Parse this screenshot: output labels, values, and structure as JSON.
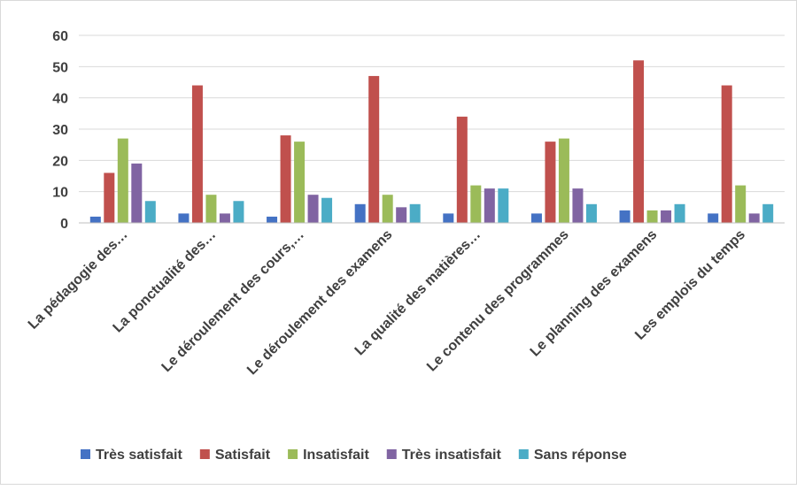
{
  "chart_data": {
    "type": "bar",
    "title": "",
    "xlabel": "",
    "ylabel": "",
    "ylim": [
      0,
      60
    ],
    "yticks": [
      0,
      10,
      20,
      30,
      40,
      50,
      60
    ],
    "grid": "horizontal",
    "legend_position": "bottom",
    "categories": [
      "La pédagogie des…",
      "La ponctualité des…",
      "Le déroulement des cours,…",
      "Le déroulement des examens",
      "La qualité des matières…",
      "Le contenu des programmes",
      "Le planning des examens",
      "Les emplois du temps"
    ],
    "series": [
      {
        "name": "Très satisfait",
        "color": "#4472C4",
        "values": [
          2,
          3,
          2,
          6,
          3,
          3,
          4,
          3
        ]
      },
      {
        "name": "Satisfait",
        "color": "#C0504D",
        "values": [
          16,
          44,
          28,
          47,
          34,
          26,
          52,
          44
        ]
      },
      {
        "name": "Insatisfait",
        "color": "#9BBB59",
        "values": [
          27,
          9,
          26,
          9,
          12,
          27,
          4,
          12
        ]
      },
      {
        "name": "Très insatisfait",
        "color": "#8064A2",
        "values": [
          19,
          3,
          9,
          5,
          11,
          11,
          4,
          3
        ]
      },
      {
        "name": "Sans réponse",
        "color": "#4BACC6",
        "values": [
          7,
          7,
          8,
          6,
          11,
          6,
          6,
          6
        ]
      }
    ]
  }
}
